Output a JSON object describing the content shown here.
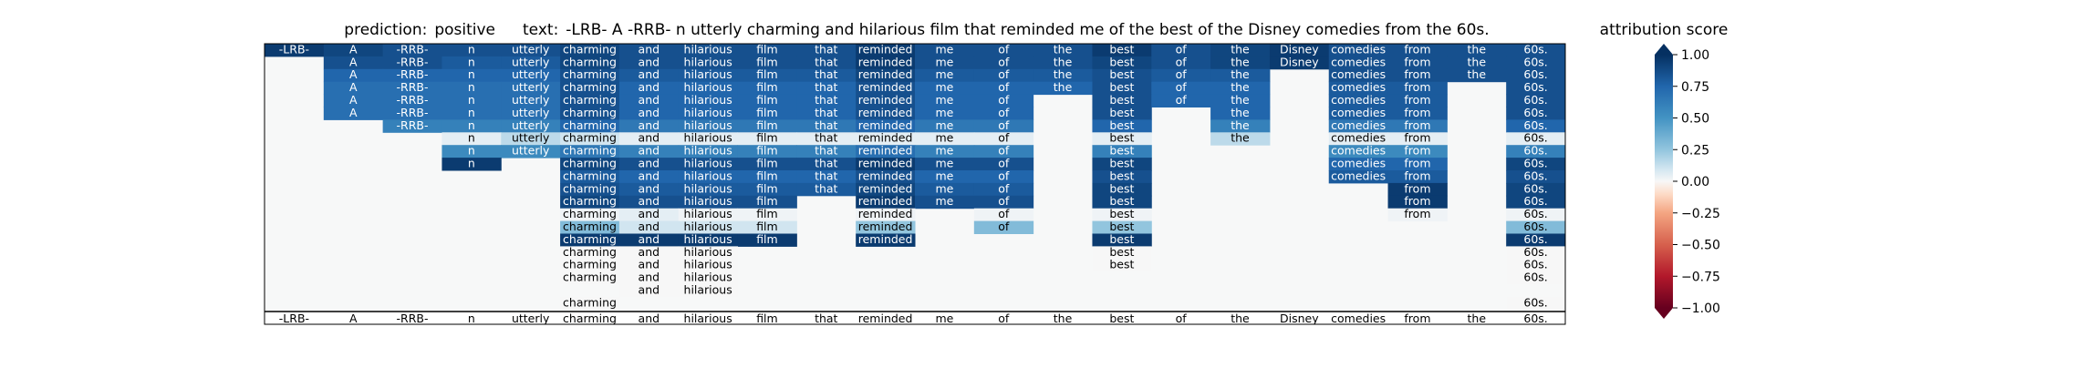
{
  "title": {
    "prediction_label": "prediction:",
    "prediction_value": "positive",
    "text_label": "text:",
    "text_value": "-LRB- A -RRB- n utterly charming and hilarious film that reminded me of the best of the Disney comedies from the 60s."
  },
  "chart_data": {
    "type": "heatmap",
    "title": "prediction:  positive     text:  -LRB- A -RRB- n utterly charming and hilarious film that reminded me of the best of the Disney comedies from the 60s.",
    "tokens": [
      "-LRB-",
      "A",
      "-RRB-",
      "n",
      "utterly",
      "charming",
      "and",
      "hilarious",
      "film",
      "that",
      "reminded",
      "me",
      "of",
      "the",
      "best",
      "of",
      "the",
      "Disney",
      "comedies",
      "from",
      "the",
      "60s."
    ],
    "rows": [
      {
        "tokens": [
          "-LRB-",
          "A",
          "-RRB-",
          "n",
          "utterly",
          "charming",
          "and",
          "hilarious",
          "film",
          "that",
          "reminded",
          "me",
          "of",
          "the",
          "best",
          "of",
          "the",
          "Disney",
          "comedies",
          "from",
          "the",
          "60s."
        ],
        "scores": [
          0.95,
          0.9,
          0.85,
          0.85,
          0.85,
          0.9,
          0.85,
          0.85,
          0.85,
          0.85,
          0.95,
          0.85,
          0.85,
          0.85,
          0.95,
          0.85,
          0.9,
          0.95,
          0.85,
          0.85,
          0.85,
          0.85
        ]
      },
      {
        "tokens": [
          null,
          "A",
          "-RRB-",
          "n",
          "utterly",
          "charming",
          "and",
          "hilarious",
          "film",
          "that",
          "reminded",
          "me",
          "of",
          "the",
          "best",
          "of",
          "the",
          "Disney",
          "comedies",
          "from",
          "the",
          "60s."
        ],
        "scores": [
          null,
          0.85,
          0.85,
          0.8,
          0.8,
          0.9,
          0.85,
          0.85,
          0.85,
          0.85,
          0.95,
          0.85,
          0.85,
          0.85,
          0.9,
          0.85,
          0.9,
          0.95,
          0.85,
          0.85,
          0.85,
          0.85
        ]
      },
      {
        "tokens": [
          null,
          "A",
          "-RRB-",
          "n",
          "utterly",
          "charming",
          "and",
          "hilarious",
          "film",
          "that",
          "reminded",
          "me",
          "of",
          "the",
          "best",
          "of",
          "the",
          null,
          "comedies",
          "from",
          "the",
          "60s."
        ],
        "scores": [
          null,
          0.75,
          0.75,
          0.75,
          0.75,
          0.85,
          0.8,
          0.8,
          0.8,
          0.8,
          0.9,
          0.8,
          0.8,
          0.8,
          0.85,
          0.8,
          0.8,
          null,
          0.85,
          0.85,
          0.85,
          0.85
        ]
      },
      {
        "tokens": [
          null,
          "A",
          "-RRB-",
          "n",
          "utterly",
          "charming",
          "and",
          "hilarious",
          "film",
          "that",
          "reminded",
          "me",
          "of",
          "the",
          "best",
          "of",
          "the",
          null,
          "comedies",
          "from",
          null,
          "60s."
        ],
        "scores": [
          null,
          0.7,
          0.7,
          0.7,
          0.7,
          0.85,
          0.75,
          0.75,
          0.75,
          0.75,
          0.85,
          0.75,
          0.75,
          0.75,
          0.85,
          0.75,
          0.75,
          null,
          0.8,
          0.8,
          null,
          0.85
        ]
      },
      {
        "tokens": [
          null,
          "A",
          "-RRB-",
          "n",
          "utterly",
          "charming",
          "and",
          "hilarious",
          "film",
          "that",
          "reminded",
          "me",
          "of",
          null,
          "best",
          "of",
          "the",
          null,
          "comedies",
          "from",
          null,
          "60s."
        ],
        "scores": [
          null,
          0.7,
          0.7,
          0.7,
          0.7,
          0.85,
          0.75,
          0.75,
          0.75,
          0.75,
          0.85,
          0.75,
          0.75,
          null,
          0.85,
          0.75,
          0.75,
          null,
          0.8,
          0.8,
          null,
          0.85
        ]
      },
      {
        "tokens": [
          null,
          "A",
          "-RRB-",
          "n",
          "utterly",
          "charming",
          "and",
          "hilarious",
          "film",
          "that",
          "reminded",
          "me",
          "of",
          null,
          "best",
          null,
          "the",
          null,
          "comedies",
          "from",
          null,
          "60s."
        ],
        "scores": [
          null,
          0.7,
          0.7,
          0.7,
          0.7,
          0.85,
          0.75,
          0.75,
          0.75,
          0.75,
          0.85,
          0.75,
          0.75,
          null,
          0.85,
          null,
          0.75,
          null,
          0.8,
          0.8,
          null,
          0.85
        ]
      },
      {
        "tokens": [
          null,
          null,
          "-RRB-",
          "n",
          "utterly",
          "charming",
          "and",
          "hilarious",
          "film",
          "that",
          "reminded",
          "me",
          "of",
          null,
          "best",
          null,
          "the",
          null,
          "comedies",
          "from",
          null,
          "60s."
        ],
        "scores": [
          null,
          null,
          0.6,
          0.6,
          0.6,
          0.75,
          0.65,
          0.65,
          0.65,
          0.65,
          0.75,
          0.65,
          0.65,
          null,
          0.75,
          null,
          0.6,
          null,
          0.65,
          0.65,
          null,
          0.75
        ]
      },
      {
        "tokens": [
          null,
          null,
          null,
          "n",
          "utterly",
          "charming",
          "and",
          "hilarious",
          "film",
          "that",
          "reminded",
          "me",
          "of",
          null,
          "best",
          null,
          "the",
          null,
          "comedies",
          "from",
          null,
          "60s."
        ],
        "scores": [
          null,
          null,
          null,
          0.05,
          0.15,
          0.1,
          0.05,
          0.05,
          0.05,
          0.05,
          0.05,
          0.05,
          0.05,
          null,
          0.05,
          null,
          0.15,
          null,
          0.05,
          0.05,
          null,
          0.05
        ]
      },
      {
        "tokens": [
          null,
          null,
          null,
          "n",
          "utterly",
          "charming",
          "and",
          "hilarious",
          "film",
          "that",
          "reminded",
          "me",
          "of",
          null,
          "best",
          null,
          null,
          null,
          "comedies",
          "from",
          null,
          "60s."
        ],
        "scores": [
          null,
          null,
          null,
          0.55,
          0.55,
          0.65,
          0.6,
          0.6,
          0.6,
          0.6,
          0.7,
          0.6,
          0.6,
          null,
          0.6,
          null,
          null,
          null,
          0.55,
          0.55,
          null,
          0.6
        ]
      },
      {
        "tokens": [
          null,
          null,
          null,
          "n",
          null,
          "charming",
          "and",
          "hilarious",
          "film",
          "that",
          "reminded",
          "me",
          "of",
          null,
          "best",
          null,
          null,
          null,
          "comedies",
          "from",
          null,
          "60s."
        ],
        "scores": [
          null,
          null,
          null,
          0.95,
          null,
          0.9,
          0.85,
          0.85,
          0.85,
          0.85,
          0.95,
          0.85,
          0.85,
          null,
          0.9,
          null,
          null,
          null,
          0.75,
          0.75,
          null,
          0.9
        ]
      },
      {
        "tokens": [
          null,
          null,
          null,
          null,
          null,
          "charming",
          "and",
          "hilarious",
          "film",
          "that",
          "reminded",
          "me",
          "of",
          null,
          "best",
          null,
          null,
          null,
          "comedies",
          "from",
          null,
          "60s."
        ],
        "scores": [
          null,
          null,
          null,
          null,
          null,
          0.8,
          0.75,
          0.75,
          0.75,
          0.75,
          0.85,
          0.75,
          0.75,
          null,
          0.85,
          null,
          null,
          null,
          0.8,
          0.8,
          null,
          0.85
        ]
      },
      {
        "tokens": [
          null,
          null,
          null,
          null,
          null,
          "charming",
          "and",
          "hilarious",
          "film",
          "that",
          "reminded",
          "me",
          "of",
          null,
          "best",
          null,
          null,
          null,
          null,
          "from",
          null,
          "60s."
        ],
        "scores": [
          null,
          null,
          null,
          null,
          null,
          0.85,
          0.8,
          0.8,
          0.8,
          0.8,
          0.9,
          0.8,
          0.8,
          null,
          0.9,
          null,
          null,
          null,
          null,
          0.95,
          null,
          0.9
        ]
      },
      {
        "tokens": [
          null,
          null,
          null,
          null,
          null,
          "charming",
          "and",
          "hilarious",
          "film",
          null,
          "reminded",
          "me",
          "of",
          null,
          "best",
          null,
          null,
          null,
          null,
          "from",
          null,
          "60s."
        ],
        "scores": [
          null,
          null,
          null,
          null,
          null,
          0.9,
          0.85,
          0.85,
          0.85,
          null,
          0.95,
          0.85,
          0.85,
          null,
          0.9,
          null,
          null,
          null,
          null,
          0.95,
          null,
          0.9
        ]
      },
      {
        "tokens": [
          null,
          null,
          null,
          null,
          null,
          "charming",
          "and",
          "hilarious",
          "film",
          null,
          "reminded",
          null,
          "of",
          null,
          "best",
          null,
          null,
          null,
          null,
          "from",
          null,
          "60s."
        ],
        "scores": [
          null,
          null,
          null,
          null,
          null,
          0.02,
          0.05,
          0.02,
          0.02,
          null,
          0.02,
          null,
          0.02,
          null,
          0.02,
          null,
          null,
          null,
          null,
          0.02,
          null,
          0.02
        ]
      },
      {
        "tokens": [
          null,
          null,
          null,
          null,
          null,
          "charming",
          "and",
          "hilarious",
          "film",
          null,
          "reminded",
          null,
          "of",
          null,
          "best",
          null,
          null,
          null,
          null,
          null,
          null,
          "60s."
        ],
        "scores": [
          null,
          null,
          null,
          null,
          null,
          0.3,
          0.1,
          0.1,
          0.1,
          null,
          0.25,
          null,
          0.3,
          null,
          0.25,
          null,
          null,
          null,
          null,
          null,
          null,
          0.3
        ]
      },
      {
        "tokens": [
          null,
          null,
          null,
          null,
          null,
          "charming",
          "and",
          "hilarious",
          "film",
          null,
          "reminded",
          null,
          null,
          null,
          "best",
          null,
          null,
          null,
          null,
          null,
          null,
          "60s."
        ],
        "scores": [
          null,
          null,
          null,
          null,
          null,
          0.95,
          0.95,
          0.95,
          0.95,
          null,
          0.95,
          null,
          null,
          null,
          0.95,
          null,
          null,
          null,
          null,
          null,
          null,
          0.95
        ]
      },
      {
        "tokens": [
          null,
          null,
          null,
          null,
          null,
          "charming",
          "and",
          "hilarious",
          null,
          null,
          null,
          null,
          null,
          null,
          "best",
          null,
          null,
          null,
          null,
          null,
          null,
          "60s."
        ],
        "scores": [
          null,
          null,
          null,
          null,
          null,
          0.0,
          0.0,
          0.0,
          null,
          null,
          null,
          null,
          null,
          null,
          0.0,
          null,
          null,
          null,
          null,
          null,
          null,
          0.0
        ]
      },
      {
        "tokens": [
          null,
          null,
          null,
          null,
          null,
          "charming",
          "and",
          "hilarious",
          null,
          null,
          null,
          null,
          null,
          null,
          "best",
          null,
          null,
          null,
          null,
          null,
          null,
          "60s."
        ],
        "scores": [
          null,
          null,
          null,
          null,
          null,
          0.0,
          0.0,
          0.0,
          null,
          null,
          null,
          null,
          null,
          null,
          0.0,
          null,
          null,
          null,
          null,
          null,
          null,
          0.0
        ]
      },
      {
        "tokens": [
          null,
          null,
          null,
          null,
          null,
          "charming",
          "and",
          "hilarious",
          null,
          null,
          null,
          null,
          null,
          null,
          null,
          null,
          null,
          null,
          null,
          null,
          null,
          "60s."
        ],
        "scores": [
          null,
          null,
          null,
          null,
          null,
          0.0,
          0.0,
          0.0,
          null,
          null,
          null,
          null,
          null,
          null,
          null,
          null,
          null,
          null,
          null,
          null,
          null,
          0.0
        ]
      },
      {
        "tokens": [
          null,
          null,
          null,
          null,
          null,
          null,
          "and",
          "hilarious",
          null,
          null,
          null,
          null,
          null,
          null,
          null,
          null,
          null,
          null,
          null,
          null,
          null,
          null
        ],
        "scores": [
          null,
          null,
          null,
          null,
          null,
          null,
          0.0,
          0.0,
          null,
          null,
          null,
          null,
          null,
          null,
          null,
          null,
          null,
          null,
          null,
          null,
          null,
          null
        ]
      },
      {
        "tokens": [
          null,
          null,
          null,
          null,
          null,
          "charming",
          null,
          null,
          null,
          null,
          null,
          null,
          null,
          null,
          null,
          null,
          null,
          null,
          null,
          null,
          null,
          "60s."
        ],
        "scores": [
          null,
          null,
          null,
          null,
          null,
          0.0,
          null,
          null,
          null,
          null,
          null,
          null,
          null,
          null,
          null,
          null,
          null,
          null,
          null,
          null,
          null,
          0.0
        ]
      }
    ],
    "colorbar": {
      "label": "attribution score",
      "ticks": [
        "1.00",
        "0.75",
        "0.50",
        "0.25",
        "0.00",
        "−0.25",
        "−0.50",
        "−0.75",
        "−1.00"
      ],
      "range": [
        -1,
        1
      ],
      "colormap": "RdBu"
    }
  }
}
